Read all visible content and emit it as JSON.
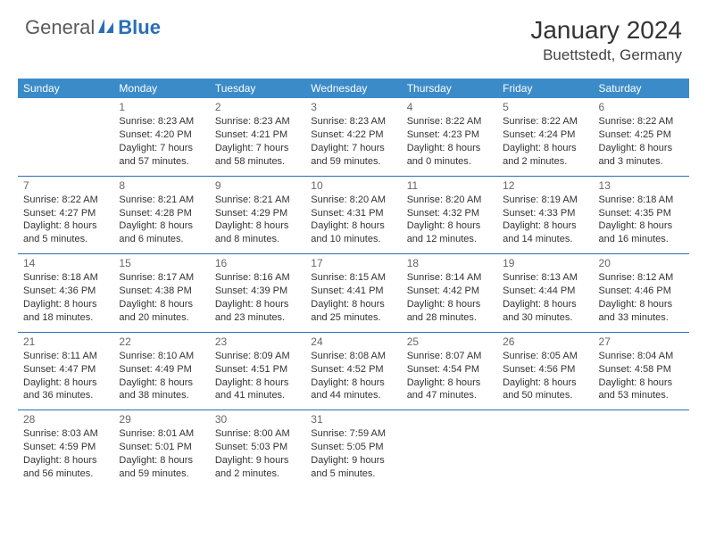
{
  "brand": {
    "text_general": "General",
    "text_blue": "Blue",
    "general_color": "#5a5a5a",
    "blue_color": "#2a6fb5"
  },
  "header": {
    "month": "January 2024",
    "location": "Buettstedt, Germany"
  },
  "style": {
    "header_bg": "#3b8bc9",
    "header_text": "#ffffff",
    "row_border": "#2a6fb5",
    "day_num_color": "#666666",
    "cell_text_color": "#333333",
    "cell_font_size": 11,
    "header_font_size": 12,
    "month_font_size": 28,
    "location_font_size": 17
  },
  "weekdays": [
    "Sunday",
    "Monday",
    "Tuesday",
    "Wednesday",
    "Thursday",
    "Friday",
    "Saturday"
  ],
  "weeks": [
    [
      null,
      {
        "d": "1",
        "sr": "Sunrise: 8:23 AM",
        "ss": "Sunset: 4:20 PM",
        "dl": "Daylight: 7 hours and 57 minutes."
      },
      {
        "d": "2",
        "sr": "Sunrise: 8:23 AM",
        "ss": "Sunset: 4:21 PM",
        "dl": "Daylight: 7 hours and 58 minutes."
      },
      {
        "d": "3",
        "sr": "Sunrise: 8:23 AM",
        "ss": "Sunset: 4:22 PM",
        "dl": "Daylight: 7 hours and 59 minutes."
      },
      {
        "d": "4",
        "sr": "Sunrise: 8:22 AM",
        "ss": "Sunset: 4:23 PM",
        "dl": "Daylight: 8 hours and 0 minutes."
      },
      {
        "d": "5",
        "sr": "Sunrise: 8:22 AM",
        "ss": "Sunset: 4:24 PM",
        "dl": "Daylight: 8 hours and 2 minutes."
      },
      {
        "d": "6",
        "sr": "Sunrise: 8:22 AM",
        "ss": "Sunset: 4:25 PM",
        "dl": "Daylight: 8 hours and 3 minutes."
      }
    ],
    [
      {
        "d": "7",
        "sr": "Sunrise: 8:22 AM",
        "ss": "Sunset: 4:27 PM",
        "dl": "Daylight: 8 hours and 5 minutes."
      },
      {
        "d": "8",
        "sr": "Sunrise: 8:21 AM",
        "ss": "Sunset: 4:28 PM",
        "dl": "Daylight: 8 hours and 6 minutes."
      },
      {
        "d": "9",
        "sr": "Sunrise: 8:21 AM",
        "ss": "Sunset: 4:29 PM",
        "dl": "Daylight: 8 hours and 8 minutes."
      },
      {
        "d": "10",
        "sr": "Sunrise: 8:20 AM",
        "ss": "Sunset: 4:31 PM",
        "dl": "Daylight: 8 hours and 10 minutes."
      },
      {
        "d": "11",
        "sr": "Sunrise: 8:20 AM",
        "ss": "Sunset: 4:32 PM",
        "dl": "Daylight: 8 hours and 12 minutes."
      },
      {
        "d": "12",
        "sr": "Sunrise: 8:19 AM",
        "ss": "Sunset: 4:33 PM",
        "dl": "Daylight: 8 hours and 14 minutes."
      },
      {
        "d": "13",
        "sr": "Sunrise: 8:18 AM",
        "ss": "Sunset: 4:35 PM",
        "dl": "Daylight: 8 hours and 16 minutes."
      }
    ],
    [
      {
        "d": "14",
        "sr": "Sunrise: 8:18 AM",
        "ss": "Sunset: 4:36 PM",
        "dl": "Daylight: 8 hours and 18 minutes."
      },
      {
        "d": "15",
        "sr": "Sunrise: 8:17 AM",
        "ss": "Sunset: 4:38 PM",
        "dl": "Daylight: 8 hours and 20 minutes."
      },
      {
        "d": "16",
        "sr": "Sunrise: 8:16 AM",
        "ss": "Sunset: 4:39 PM",
        "dl": "Daylight: 8 hours and 23 minutes."
      },
      {
        "d": "17",
        "sr": "Sunrise: 8:15 AM",
        "ss": "Sunset: 4:41 PM",
        "dl": "Daylight: 8 hours and 25 minutes."
      },
      {
        "d": "18",
        "sr": "Sunrise: 8:14 AM",
        "ss": "Sunset: 4:42 PM",
        "dl": "Daylight: 8 hours and 28 minutes."
      },
      {
        "d": "19",
        "sr": "Sunrise: 8:13 AM",
        "ss": "Sunset: 4:44 PM",
        "dl": "Daylight: 8 hours and 30 minutes."
      },
      {
        "d": "20",
        "sr": "Sunrise: 8:12 AM",
        "ss": "Sunset: 4:46 PM",
        "dl": "Daylight: 8 hours and 33 minutes."
      }
    ],
    [
      {
        "d": "21",
        "sr": "Sunrise: 8:11 AM",
        "ss": "Sunset: 4:47 PM",
        "dl": "Daylight: 8 hours and 36 minutes."
      },
      {
        "d": "22",
        "sr": "Sunrise: 8:10 AM",
        "ss": "Sunset: 4:49 PM",
        "dl": "Daylight: 8 hours and 38 minutes."
      },
      {
        "d": "23",
        "sr": "Sunrise: 8:09 AM",
        "ss": "Sunset: 4:51 PM",
        "dl": "Daylight: 8 hours and 41 minutes."
      },
      {
        "d": "24",
        "sr": "Sunrise: 8:08 AM",
        "ss": "Sunset: 4:52 PM",
        "dl": "Daylight: 8 hours and 44 minutes."
      },
      {
        "d": "25",
        "sr": "Sunrise: 8:07 AM",
        "ss": "Sunset: 4:54 PM",
        "dl": "Daylight: 8 hours and 47 minutes."
      },
      {
        "d": "26",
        "sr": "Sunrise: 8:05 AM",
        "ss": "Sunset: 4:56 PM",
        "dl": "Daylight: 8 hours and 50 minutes."
      },
      {
        "d": "27",
        "sr": "Sunrise: 8:04 AM",
        "ss": "Sunset: 4:58 PM",
        "dl": "Daylight: 8 hours and 53 minutes."
      }
    ],
    [
      {
        "d": "28",
        "sr": "Sunrise: 8:03 AM",
        "ss": "Sunset: 4:59 PM",
        "dl": "Daylight: 8 hours and 56 minutes."
      },
      {
        "d": "29",
        "sr": "Sunrise: 8:01 AM",
        "ss": "Sunset: 5:01 PM",
        "dl": "Daylight: 8 hours and 59 minutes."
      },
      {
        "d": "30",
        "sr": "Sunrise: 8:00 AM",
        "ss": "Sunset: 5:03 PM",
        "dl": "Daylight: 9 hours and 2 minutes."
      },
      {
        "d": "31",
        "sr": "Sunrise: 7:59 AM",
        "ss": "Sunset: 5:05 PM",
        "dl": "Daylight: 9 hours and 5 minutes."
      },
      null,
      null,
      null
    ]
  ]
}
